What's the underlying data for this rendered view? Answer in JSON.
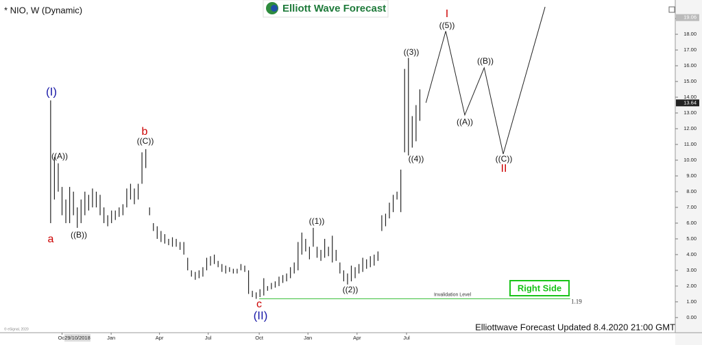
{
  "chart_data": {
    "type": "range-bar",
    "title": "* NIO, W (Dynamic)",
    "brand": "Elliott Wave Forecast",
    "footer": "Elliottwave Forecast Updated 8.4.2020 21:00 GMT",
    "copyright": "© eSignal, 2020",
    "badge": "Right Side",
    "x_cursor_label": "29/10/2018",
    "color": "#222222",
    "xlim": [
      -13.3,
      164.1
    ],
    "ylim": [
      -0.7,
      19.96
    ],
    "xticks": [
      {
        "value": 3,
        "label": "Oct"
      },
      {
        "value": 15.9,
        "label": "Jan"
      },
      {
        "value": 28.6,
        "label": "Apr"
      },
      {
        "value": 41.4,
        "label": "Jul"
      },
      {
        "value": 54.8,
        "label": "Oct"
      },
      {
        "value": 67.6,
        "label": "Jan"
      },
      {
        "value": 80.5,
        "label": "Apr"
      },
      {
        "value": 93.5,
        "label": "Jul"
      }
    ],
    "yticks": [
      {
        "value": 0,
        "label": "0.00"
      },
      {
        "value": 1,
        "label": "1.00"
      },
      {
        "value": 2,
        "label": "2.00"
      },
      {
        "value": 3,
        "label": "3.00"
      },
      {
        "value": 4,
        "label": "4.00"
      },
      {
        "value": 5,
        "label": "5.00"
      },
      {
        "value": 6,
        "label": "6.00"
      },
      {
        "value": 7,
        "label": "7.00"
      },
      {
        "value": 8,
        "label": "8.00"
      },
      {
        "value": 9,
        "label": "9.00"
      },
      {
        "value": 10,
        "label": "10.00"
      },
      {
        "value": 11,
        "label": "11.00"
      },
      {
        "value": 12,
        "label": "12.00"
      },
      {
        "value": 13,
        "label": "13.00"
      },
      {
        "value": 14,
        "label": "14.00"
      },
      {
        "value": 15,
        "label": "15.00"
      },
      {
        "value": 16,
        "label": "16.00"
      },
      {
        "value": 17,
        "label": "17.00"
      },
      {
        "value": 18,
        "label": "18.00"
      },
      {
        "value": 19,
        "label": "19.00"
      }
    ],
    "last_price": 13.64,
    "high_marker": 19.06,
    "x": [
      0,
      1,
      2,
      3,
      4,
      5,
      6,
      7,
      8,
      9,
      10,
      11,
      12,
      13,
      14,
      15,
      16,
      17,
      18,
      19,
      20,
      21,
      22,
      23,
      24,
      25,
      26,
      27,
      28,
      29,
      30,
      31,
      32,
      33,
      34,
      35,
      36,
      37,
      38,
      39,
      40,
      41,
      42,
      43,
      44,
      45,
      46,
      47,
      48,
      49,
      50,
      51,
      52,
      53,
      54,
      55,
      56,
      57,
      58,
      59,
      60,
      61,
      62,
      63,
      64,
      65,
      66,
      67,
      68,
      69,
      70,
      71,
      72,
      73,
      74,
      75,
      76,
      77,
      78,
      79,
      80,
      81,
      82,
      83,
      84,
      85,
      86,
      87,
      88,
      89,
      90,
      91,
      92,
      93,
      94,
      95,
      96,
      97
    ],
    "high": [
      13.8,
      10.2,
      9.8,
      8.3,
      7.5,
      8.3,
      8,
      7,
      7.5,
      8,
      7.8,
      8.2,
      8,
      7.8,
      7,
      6.5,
      6.8,
      6.8,
      7,
      7.2,
      8.2,
      8.5,
      8.2,
      8.5,
      10.5,
      10.7,
      7,
      6,
      5.8,
      5.5,
      5.3,
      5,
      5.1,
      5,
      4.8,
      4.8,
      3.8,
      3,
      2.9,
      3,
      3.2,
      3.8,
      3.9,
      4,
      3.6,
      3.4,
      3.3,
      3.2,
      3.1,
      3.1,
      3.4,
      3.3,
      3,
      1.7,
      1.6,
      1.8,
      2.5,
      2,
      2.2,
      2.3,
      2.6,
      2.7,
      2.8,
      3.2,
      3.5,
      4.8,
      5.4,
      5,
      4.5,
      5.7,
      4.5,
      4.3,
      5,
      4.5,
      5.2,
      4.3,
      3.5,
      3,
      2.8,
      3.3,
      3.2,
      3.4,
      3.8,
      3.7,
      3.9,
      4,
      4.2,
      6.5,
      6.6,
      7.3,
      7.8,
      8,
      9.4,
      15.8,
      16.5,
      12.8,
      13.5,
      14.5
    ],
    "low": [
      6,
      7.5,
      8,
      6.5,
      6,
      6,
      6.5,
      5.7,
      6,
      6.5,
      6.8,
      7,
      7,
      6.5,
      6,
      5.8,
      6,
      6.2,
      6.4,
      6.5,
      7,
      7.5,
      7.2,
      7.5,
      8.5,
      9.5,
      6.5,
      5.5,
      5,
      4.8,
      4.7,
      4.6,
      4.5,
      4.5,
      4.3,
      4,
      3,
      2.6,
      2.4,
      2.5,
      2.6,
      3,
      3.3,
      3.4,
      3.2,
      2.9,
      2.8,
      2.9,
      2.8,
      2.8,
      3,
      2.9,
      1.5,
      1.3,
      1.19,
      1.3,
      1.4,
      1.7,
      1.8,
      1.9,
      2,
      2.2,
      2.3,
      2.5,
      2.8,
      3,
      4,
      4.2,
      3.7,
      4.5,
      3.8,
      3.6,
      3.8,
      3.9,
      3.5,
      3.6,
      2.8,
      2.3,
      2.1,
      2.3,
      2.5,
      2.8,
      2.9,
      3.1,
      3.2,
      3.3,
      3.6,
      5.5,
      5.8,
      6.3,
      6.7,
      7.5,
      6.7,
      10.5,
      10.3,
      10.8,
      11.2,
      12.5
    ],
    "projection": {
      "x": [
        98.6,
        103.8,
        108.8,
        113.9,
        118.9,
        129.9
      ],
      "y": [
        13.65,
        18.2,
        12.87,
        15.87,
        10.39,
        19.74
      ]
    },
    "invalidation": {
      "label": "Invalidation Level",
      "value": 1.19,
      "x": [
        54.8,
        136.5
      ]
    },
    "annotations": [
      "(I)",
      "((A))",
      "a",
      "((B))",
      "b",
      "((C))",
      "c",
      "(II)",
      "((1))",
      "((2))",
      "((3))",
      "((4))",
      "I",
      "((5))",
      "((A))",
      "((B))",
      "((C))",
      "II"
    ]
  }
}
